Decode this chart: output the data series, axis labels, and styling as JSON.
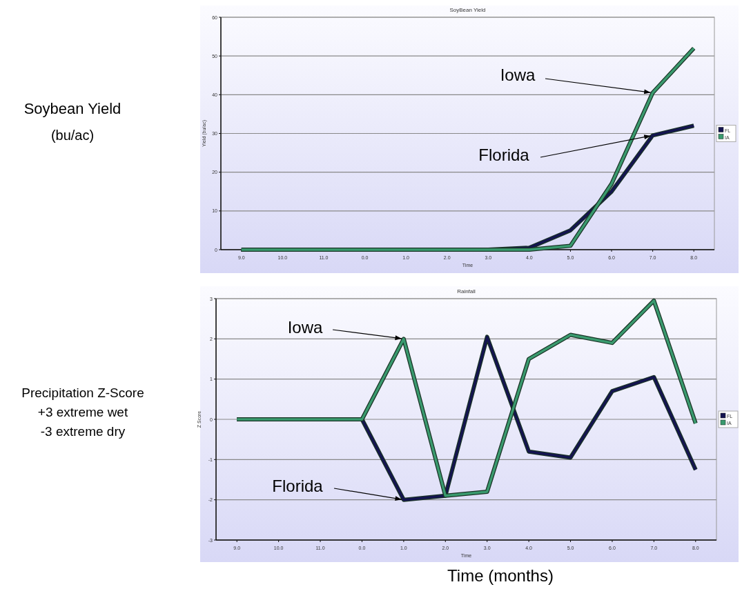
{
  "chart_data": [
    {
      "type": "line",
      "title": "SoyBean Yield",
      "xlabel": "Time",
      "ylabel": "Yield (bu/ac)",
      "categories": [
        "9.0",
        "10.0",
        "11.0",
        "0.0",
        "1.0",
        "2.0",
        "3.0",
        "4.0",
        "5.0",
        "6.0",
        "7.0",
        "8.0"
      ],
      "series": [
        {
          "name": "FL",
          "color": "#141450",
          "values": [
            0,
            0,
            0,
            0,
            0,
            0,
            0,
            0.5,
            5,
            15,
            29.5,
            32
          ]
        },
        {
          "name": "IA",
          "color": "#3a9a6e",
          "values": [
            0,
            0,
            0,
            0,
            0,
            0,
            0,
            0,
            1,
            17,
            40.5,
            52
          ]
        }
      ],
      "ylim": [
        0,
        60
      ],
      "yticks": [
        0,
        10,
        20,
        30,
        40,
        50,
        60
      ],
      "grid": "y",
      "legend": "right",
      "marker": "none",
      "line_style": "solid",
      "annotations": [
        "Soybean Yield",
        "(bu/ac)",
        {
          "text": "Iowa",
          "x": "7.0",
          "y": 40.5
        },
        {
          "text": "Florida",
          "x": "7.0",
          "y": 29.5
        }
      ]
    },
    {
      "type": "line",
      "title": "Rainfall",
      "xlabel": "Time",
      "ylabel": "Z Score",
      "categories": [
        "9.0",
        "10.0",
        "11.0",
        "0.0",
        "1.0",
        "2.0",
        "3.0",
        "4.0",
        "5.0",
        "6.0",
        "7.0",
        "8.0"
      ],
      "series": [
        {
          "name": "FL",
          "color": "#141450",
          "values": [
            0,
            0,
            0,
            0,
            -2,
            -1.9,
            2.05,
            -0.8,
            -0.95,
            0.7,
            1.05,
            -1.25
          ]
        },
        {
          "name": "IA",
          "color": "#3a9a6e",
          "values": [
            0,
            0,
            0,
            0,
            2,
            -1.9,
            -1.8,
            1.5,
            2.1,
            1.9,
            2.95,
            -0.1
          ]
        }
      ],
      "ylim": [
        -3,
        3
      ],
      "yticks": [
        -3,
        -2,
        -1,
        0,
        1,
        2,
        3
      ],
      "grid": "y",
      "legend": "right",
      "marker": "none",
      "line_style": "solid",
      "annotations": [
        "Precipitation Z-Score",
        "+3 extreme wet",
        "-3 extreme dry",
        "Time (months)",
        {
          "text": "Iowa",
          "x": "1.0",
          "y": 2
        },
        {
          "text": "Florida",
          "x": "1.0",
          "y": -2
        }
      ]
    }
  ]
}
